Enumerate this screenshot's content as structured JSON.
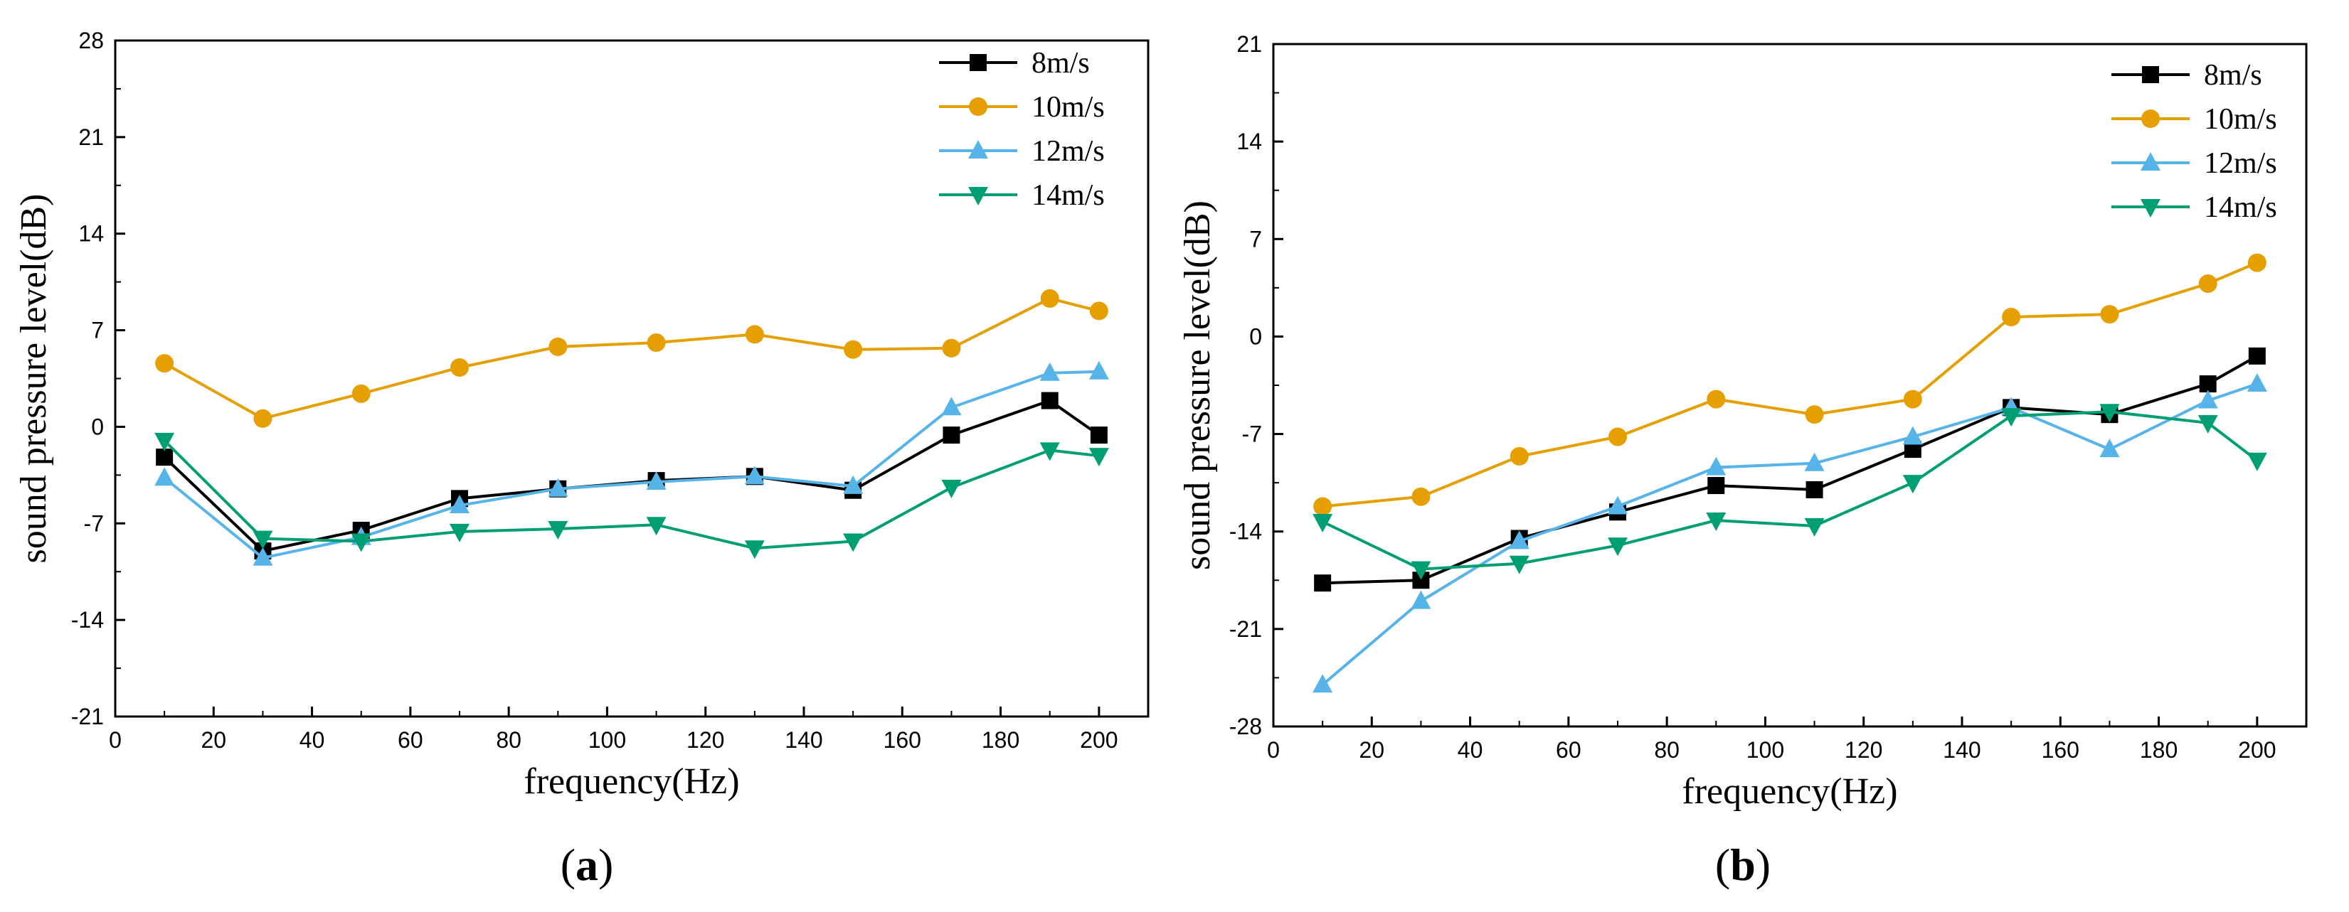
{
  "chart_data": [
    {
      "type": "line",
      "panel_label": "a",
      "xlabel": "frequency(Hz)",
      "ylabel": "sound pressure level(dB)",
      "xlim": [
        0,
        210
      ],
      "ylim": [
        -21,
        28
      ],
      "xticks": [
        0,
        20,
        40,
        60,
        80,
        100,
        120,
        140,
        160,
        180,
        200
      ],
      "yticks": [
        -21,
        -14,
        -7,
        0,
        7,
        14,
        21,
        28
      ],
      "legend_position": "top-right",
      "x": [
        10,
        30,
        50,
        70,
        90,
        110,
        130,
        150,
        170,
        190,
        200
      ],
      "series": [
        {
          "name": "8m/s",
          "color": "#000000",
          "marker": "square",
          "values": [
            -2.2,
            -9.0,
            -7.5,
            -5.2,
            -4.5,
            -3.9,
            -3.6,
            -4.6,
            -0.6,
            1.9,
            -0.6
          ]
        },
        {
          "name": "10m/s",
          "color": "#E69F00",
          "marker": "circle",
          "values": [
            4.6,
            0.6,
            2.4,
            4.3,
            5.8,
            6.1,
            6.7,
            5.6,
            5.7,
            9.3,
            8.4
          ]
        },
        {
          "name": "12m/s",
          "color": "#56B4E9",
          "marker": "triangle-up",
          "values": [
            -3.7,
            -9.5,
            -8.0,
            -5.7,
            -4.5,
            -4.0,
            -3.6,
            -4.3,
            1.4,
            3.9,
            4.0
          ]
        },
        {
          "name": "14m/s",
          "color": "#009E73",
          "marker": "triangle-down",
          "values": [
            -1.0,
            -8.1,
            -8.3,
            -7.6,
            -7.4,
            -7.1,
            -8.8,
            -8.3,
            -4.4,
            -1.7,
            -2.1
          ]
        }
      ]
    },
    {
      "type": "line",
      "panel_label": "b",
      "xlabel": "frequency(Hz)",
      "ylabel": "sound pressure level(dB)",
      "xlim": [
        0,
        210
      ],
      "ylim": [
        -28,
        21
      ],
      "xticks": [
        0,
        20,
        40,
        60,
        80,
        100,
        120,
        140,
        160,
        180,
        200
      ],
      "yticks": [
        -28,
        -21,
        -14,
        -7,
        0,
        7,
        14,
        21
      ],
      "legend_position": "top-right",
      "x": [
        10,
        30,
        50,
        70,
        90,
        110,
        130,
        150,
        170,
        190,
        200
      ],
      "series": [
        {
          "name": "8m/s",
          "color": "#000000",
          "marker": "square",
          "values": [
            -17.7,
            -17.5,
            -14.5,
            -12.6,
            -10.7,
            -11.0,
            -8.1,
            -5.1,
            -5.6,
            -3.4,
            -1.4
          ]
        },
        {
          "name": "10m/s",
          "color": "#E69F00",
          "marker": "circle",
          "values": [
            -12.2,
            -11.5,
            -8.6,
            -7.2,
            -4.5,
            -5.6,
            -4.5,
            1.4,
            1.6,
            3.8,
            5.3
          ]
        },
        {
          "name": "12m/s",
          "color": "#56B4E9",
          "marker": "triangle-up",
          "values": [
            -25.0,
            -19.0,
            -14.7,
            -12.2,
            -9.4,
            -9.1,
            -7.2,
            -5.1,
            -8.1,
            -4.6,
            -3.4
          ]
        },
        {
          "name": "14m/s",
          "color": "#009E73",
          "marker": "triangle-down",
          "values": [
            -13.3,
            -16.7,
            -16.3,
            -15.0,
            -13.2,
            -13.6,
            -10.5,
            -5.7,
            -5.4,
            -6.2,
            -8.9
          ]
        }
      ]
    }
  ]
}
